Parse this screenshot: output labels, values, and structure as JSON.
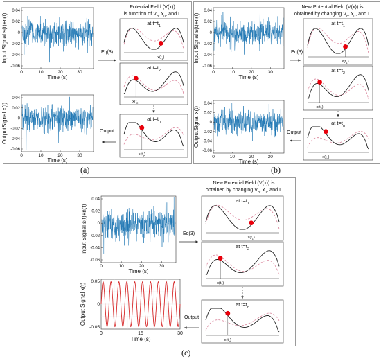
{
  "panels": [
    {
      "caption": "(a)",
      "header_line1": "Potential Field (V(x))",
      "header_line2": "is function of V",
      "header_sub": "d",
      "header_rest": ", x",
      "header_sub2": "0",
      "header_end": ", and L",
      "input_ylabel": "Input Signal s(t)+n(t)",
      "output_ylabel": "OutputSignal x(t)",
      "xlabel": "Time (s)",
      "eq_label": "Eq(3)",
      "output_label": "Output",
      "input_yticks": [
        "0.04",
        "0.02",
        "0",
        "-0.02",
        "-0.04",
        "-0.06"
      ],
      "output_yticks": [
        "0.04",
        "0.02",
        "0",
        "-0.02",
        "-0.04",
        "-0.06"
      ],
      "xticks": [
        "0",
        "10",
        "20",
        "30"
      ],
      "wells": [
        {
          "label": "at t=t",
          "sub": "1",
          "xlabel": "x(t",
          "xsub": "1",
          "xend": ")"
        },
        {
          "label": "at t=t",
          "sub": "2",
          "xlabel": "x(t",
          "xsub": "2",
          "xend": ")"
        },
        {
          "label": "at t=t",
          "sub": "n",
          "xlabel": "x(t",
          "xsub": "n",
          "xend": ")"
        }
      ]
    },
    {
      "caption": "(b)",
      "header_line1": "New Potential Field (V(x)) is",
      "header_line2": "obtained by changing V",
      "header_sub": "d",
      "header_rest": ", x",
      "header_sub2": "0",
      "header_end": ", and L",
      "input_ylabel": "Input Signal s(t)+n(t)",
      "output_ylabel": "OutputSignal x(t)",
      "xlabel": "Time (s)",
      "eq_label": "Eq(3)",
      "output_label": "Output",
      "input_yticks": [
        "0.04",
        "0.02",
        "0",
        "-0.02",
        "-0.04",
        "-0.06"
      ],
      "output_yticks": [
        "0.04",
        "0.02",
        "0",
        "-0.02",
        "-0.04",
        "-0.06"
      ],
      "xticks": [
        "0",
        "10",
        "20",
        "30"
      ],
      "wells": [
        {
          "label": "at t=t",
          "sub": "1",
          "xlabel": "x(t",
          "xsub": "1",
          "xend": ")"
        },
        {
          "label": "at t=t",
          "sub": "2",
          "xlabel": "x(t",
          "xsub": "2",
          "xend": ")"
        },
        {
          "label": "at t=t",
          "sub": "n",
          "xlabel": "x(t",
          "xsub": "n",
          "xend": ")"
        }
      ]
    },
    {
      "caption": "(c)",
      "header_line1": "New Potential Field (V(x)) is",
      "header_line2": "obtained by changing V",
      "header_sub": "d",
      "header_rest": ", x",
      "header_sub2": "0",
      "header_end": ", and L",
      "input_ylabel": "Input Signal s(t)+n(t)",
      "output_ylabel": "Output Signal x(t)",
      "xlabel": "Time (s)",
      "eq_label": "Eq(3)",
      "output_label": "Output",
      "input_yticks": [
        "0.04",
        "0.02",
        "0",
        "-0.02",
        "-0.04",
        "-0.06"
      ],
      "output_yticks": [
        "0.05",
        "0",
        "-0.05"
      ],
      "xticks": [
        "0",
        "10",
        "20",
        "30"
      ],
      "output_xticks": [
        "0",
        "15",
        "30"
      ],
      "wells": [
        {
          "label": "at t=t",
          "sub": "1",
          "xlabel": "x(t",
          "xsub": "1",
          "xend": ")"
        },
        {
          "label": "at t=t",
          "sub": "2",
          "xlabel": "x(t",
          "xsub": "2",
          "xend": ")"
        },
        {
          "label": "at t=t",
          "sub": "n",
          "xlabel": "x(t",
          "xsub": "n",
          "xend": ")"
        }
      ]
    }
  ],
  "colors": {
    "noise": "#1f77b4",
    "sine": "#d62728",
    "particle": "#e8000b",
    "dashed": "#d9839a",
    "curve": "#222222"
  }
}
